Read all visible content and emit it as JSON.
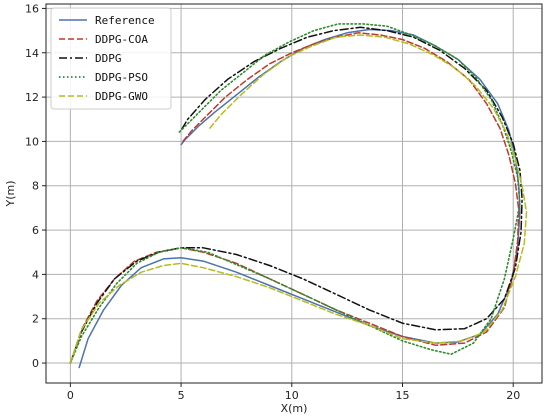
{
  "chart_data": {
    "type": "line",
    "xlabel": "X(m)",
    "ylabel": "Y(m)",
    "xlim": [
      -1.1,
      21.3
    ],
    "ylim": [
      -0.9,
      16.2
    ],
    "xticks": [
      0,
      5,
      10,
      15,
      20
    ],
    "yticks": [
      0,
      2,
      4,
      6,
      8,
      10,
      12,
      14,
      16
    ],
    "grid": true,
    "legend": "top-left",
    "series": [
      {
        "name": "Reference",
        "color": "#4c72b0",
        "style": "solid",
        "x": [
          0.4,
          0.8,
          1.5,
          2.3,
          3.2,
          4.2,
          5.0,
          6.0,
          7.5,
          9.0,
          10.5,
          12.0,
          13.5,
          15.0,
          16.5,
          17.5,
          18.5,
          19.3,
          19.9,
          20.2,
          20.3,
          20.25,
          20.1,
          19.8,
          19.3,
          18.5,
          17.5,
          16.5,
          15.5,
          14.5,
          13.5,
          12.5,
          11.5,
          10.5,
          9.5,
          8.5,
          7.5,
          6.5,
          5.8,
          5.2,
          5.0
        ],
        "y": [
          -0.2,
          1.1,
          2.4,
          3.5,
          4.3,
          4.7,
          4.75,
          4.6,
          4.1,
          3.5,
          2.9,
          2.3,
          1.7,
          1.2,
          0.9,
          0.95,
          1.3,
          2.2,
          3.6,
          5.2,
          6.8,
          8.0,
          9.3,
          10.5,
          11.7,
          12.8,
          13.7,
          14.3,
          14.8,
          15.0,
          15.05,
          14.9,
          14.6,
          14.2,
          13.6,
          12.9,
          12.1,
          11.3,
          10.7,
          10.1,
          9.85
        ]
      },
      {
        "name": "DDPG-COA",
        "color": "#c0392b",
        "style": "dashed",
        "x": [
          0.0,
          0.5,
          1.2,
          2.0,
          2.9,
          3.9,
          5.0,
          6.0,
          7.5,
          9.0,
          10.5,
          12.0,
          13.5,
          15.0,
          16.5,
          17.8,
          18.8,
          19.6,
          20.0,
          20.2,
          20.25,
          20.1,
          19.8,
          19.4,
          18.8,
          18.0,
          17.0,
          16.0,
          15.0,
          14.0,
          13.0,
          12.0,
          11.0,
          10.0,
          9.0,
          8.0,
          7.0,
          6.2,
          5.5,
          5.0
        ],
        "y": [
          0.0,
          1.5,
          2.8,
          3.8,
          4.6,
          5.0,
          5.2,
          5.0,
          4.5,
          3.8,
          3.1,
          2.4,
          1.8,
          1.2,
          0.8,
          0.9,
          1.4,
          2.5,
          4.0,
          5.5,
          6.9,
          8.1,
          9.4,
          10.6,
          11.7,
          12.8,
          13.6,
          14.2,
          14.6,
          14.8,
          14.9,
          14.7,
          14.4,
          14.0,
          13.5,
          12.8,
          12.0,
          11.2,
          10.5,
          9.9
        ]
      },
      {
        "name": "DDPG",
        "color": "#111111",
        "style": "dashdot",
        "x": [
          0.0,
          0.5,
          1.2,
          2.0,
          3.0,
          4.0,
          5.0,
          6.0,
          7.5,
          9.0,
          10.5,
          12.0,
          13.5,
          15.0,
          16.5,
          17.8,
          18.8,
          19.6,
          20.1,
          20.35,
          20.4,
          20.3,
          20.0,
          19.5,
          18.8,
          17.8,
          16.7,
          15.5,
          14.3,
          13.1,
          11.9,
          10.7,
          9.5,
          8.3,
          7.1,
          6.1,
          5.3,
          5.0
        ],
        "y": [
          0.0,
          1.4,
          2.7,
          3.8,
          4.6,
          5.0,
          5.2,
          5.2,
          4.9,
          4.4,
          3.8,
          3.1,
          2.4,
          1.8,
          1.5,
          1.55,
          2.0,
          2.9,
          4.3,
          5.9,
          7.4,
          8.7,
          9.9,
          11.1,
          12.3,
          13.3,
          14.1,
          14.7,
          15.0,
          15.15,
          15.0,
          14.7,
          14.2,
          13.6,
          12.8,
          11.9,
          11.0,
          10.5
        ]
      },
      {
        "name": "DDPG-PSO",
        "color": "#2e8b2e",
        "style": "dotted",
        "x": [
          0.0,
          0.5,
          1.3,
          2.1,
          3.0,
          4.0,
          5.0,
          6.2,
          7.6,
          9.0,
          10.5,
          12.0,
          13.5,
          15.0,
          16.3,
          17.2,
          18.2,
          19.0,
          19.6,
          20.0,
          20.3,
          20.2,
          19.9,
          19.5,
          19.0,
          18.3,
          17.5,
          16.5,
          15.4,
          14.3,
          13.2,
          12.1,
          11.0,
          9.9,
          8.8,
          7.8,
          6.8,
          6.0,
          5.4,
          4.9
        ],
        "y": [
          0.0,
          1.2,
          2.5,
          3.6,
          4.5,
          5.0,
          5.2,
          5.0,
          4.4,
          3.8,
          3.1,
          2.4,
          1.7,
          1.0,
          0.6,
          0.4,
          0.9,
          2.0,
          3.8,
          5.6,
          7.2,
          8.4,
          9.6,
          10.8,
          11.9,
          12.9,
          13.7,
          14.3,
          14.8,
          15.2,
          15.3,
          15.3,
          15.0,
          14.5,
          13.9,
          13.1,
          12.3,
          11.5,
          10.9,
          10.4
        ]
      },
      {
        "name": "DDPG-GWO",
        "color": "#b5bd1e",
        "style": "dashed",
        "x": [
          0.0,
          0.5,
          1.3,
          2.2,
          3.2,
          4.2,
          5.0,
          6.0,
          7.5,
          9.0,
          10.5,
          12.0,
          13.5,
          15.0,
          16.5,
          17.7,
          18.7,
          19.5,
          20.1,
          20.5,
          20.6,
          20.4,
          20.1,
          19.7,
          19.1,
          18.3,
          17.4,
          16.4,
          15.3,
          14.2,
          13.1,
          12.0,
          10.9,
          9.8,
          8.7,
          7.7,
          6.8,
          6.3
        ],
        "y": [
          0.0,
          1.5,
          2.7,
          3.5,
          4.1,
          4.4,
          4.5,
          4.3,
          3.9,
          3.4,
          2.8,
          2.2,
          1.7,
          1.1,
          0.9,
          1.0,
          1.4,
          2.4,
          3.9,
          5.4,
          6.8,
          8.0,
          9.2,
          10.4,
          11.5,
          12.5,
          13.3,
          13.9,
          14.4,
          14.7,
          14.8,
          14.7,
          14.3,
          13.8,
          13.0,
          12.1,
          11.2,
          10.6
        ]
      }
    ]
  }
}
